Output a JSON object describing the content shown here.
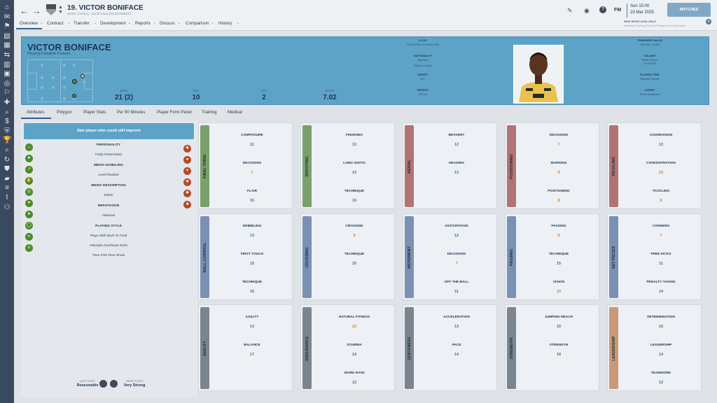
{
  "sidebar": {
    "icons": [
      "home-icon",
      "mail-icon",
      "squad-icon",
      "notebook-icon",
      "clipboard-icon",
      "transfer-icon",
      "report-icon",
      "calendar-icon",
      "globe-icon",
      "training-icon",
      "medical-icon",
      "scout-icon",
      "finance-icon",
      "club-icon",
      "trophy-icon",
      "search-icon",
      "refresh-icon",
      "shield-icon",
      "chart-icon",
      "list-icon",
      "whistle-icon",
      "staff-icon"
    ]
  },
  "header": {
    "title": "19. VICTOR BONIFACE",
    "subtitle": "Striker (Centre) - Santa Clara (€6,937/WEEK)",
    "nav": [
      "Overview",
      "Contract",
      "Transfer",
      "Development",
      "Reports",
      "Discuss",
      "Comparison",
      "History"
    ],
    "fm": "FM",
    "day": "Sun 15:00",
    "date": "23 Mar 2025",
    "matches_button": "MATCHES",
    "news_title": "NEW NEWS AVAILABLE",
    "news_text": "Additional Training To Boost Player Form Scheduled..."
  },
  "player": {
    "name": "VICTOR BONIFACE",
    "role": "Physical Complete Forward",
    "stats": [
      {
        "label": "APPS",
        "value": "21 (2)"
      },
      {
        "label": "GLS",
        "value": "10"
      },
      {
        "label": "AST",
        "value": "2"
      },
      {
        "label": "AV RAT",
        "value": "7.02"
      }
    ],
    "info_left": [
      {
        "label": "D.O.B.",
        "value": "23/12/2000 (24 years old)"
      },
      {
        "label": "NATIONALITY",
        "value": "Nigerian"
      },
      {
        "label": "HEIGHT",
        "value": "6'3\""
      },
      {
        "label": "WEIGHT",
        "value": "190 lbs"
      }
    ],
    "nationality_extra": "Nigeria (2 caps)",
    "info_right": [
      {
        "label": "TRANSFER VALUE",
        "value": "€10.0M - €12M"
      },
      {
        "label": "SALARY",
        "value": "€388,000 p/a"
      },
      {
        "label": "PLAYING TIME",
        "value": "Regular Starter"
      },
      {
        "label": "AGENT",
        "value": "None contacted"
      }
    ],
    "salary_extra": "31/12/2026"
  },
  "subtabs": [
    "Attributes",
    "Polygon",
    "Player Stats",
    "Per 90 Minutes",
    "Player Form Panel",
    "Training",
    "Medical"
  ],
  "left_panel": {
    "banner": "Star player who could still improve",
    "sections": [
      {
        "heading": "PERSONALITY",
        "values": [
          "Fairly Determined"
        ]
      },
      {
        "heading": "MEDIA HANDLING",
        "values": [
          "Level-headed"
        ]
      },
      {
        "heading": "MEDIA DESCRIPTION",
        "values": [
          "Striker"
        ]
      },
      {
        "heading": "REPUTATION",
        "values": [
          "National"
        ]
      },
      {
        "heading": "PLAYING STYLE",
        "values": [
          "Plays With Back To Goal",
          "Attempts Overhead Kicks",
          "Tries First Time Shots"
        ]
      }
    ],
    "left_foot_label": "LEFT FOOT",
    "left_foot": "Reasonable",
    "right_foot_label": "RIGHT FOOT",
    "right_foot": "Very Strong"
  },
  "colors": {
    "high": "#3c8a34",
    "mid": "#2f6fb5",
    "low": "#e07b1c"
  },
  "attribute_groups": [
    {
      "name": "FINAL THIRD",
      "color": "#7aa06c",
      "attrs": [
        [
          "COMPOSURE",
          "11"
        ],
        [
          "DECISIONS",
          "7"
        ],
        [
          "FLAIR",
          "15"
        ]
      ]
    },
    {
      "name": "SHOOTING",
      "color": "#7aa06c",
      "attrs": [
        [
          "FINISHING",
          "13"
        ],
        [
          "LONG SHOTS",
          "13"
        ],
        [
          "TECHNIQUE",
          "15"
        ]
      ]
    },
    {
      "name": "AERIAL",
      "color": "#b27373",
      "attrs": [
        [
          "BRAVERY",
          "12"
        ],
        [
          "HEADING",
          "13"
        ]
      ]
    },
    {
      "name": "POSITIONING",
      "color": "#b27373",
      "attrs": [
        [
          "DECISIONS",
          "7"
        ],
        [
          "MARKING",
          "9"
        ],
        [
          "POSITIONING",
          "8"
        ]
      ]
    },
    {
      "name": "TACKLING",
      "color": "#b27373",
      "attrs": [
        [
          "AGGRESSION",
          "13"
        ],
        [
          "CONCENTRATION",
          "10"
        ],
        [
          "TACKLING",
          "9"
        ]
      ]
    },
    {
      "name": "BALL CONTROL",
      "color": "#7a91b4",
      "attrs": [
        [
          "DRIBBLING",
          "13"
        ],
        [
          "FIRST TOUCH",
          "15"
        ],
        [
          "TECHNIQUE",
          "15"
        ]
      ]
    },
    {
      "name": "CROSSING",
      "color": "#7a91b4",
      "attrs": [
        [
          "CROSSING",
          "9"
        ],
        [
          "TECHNIQUE",
          "15"
        ]
      ]
    },
    {
      "name": "MOVEMENT",
      "color": "#7a91b4",
      "attrs": [
        [
          "ANTICIPATION",
          "12"
        ],
        [
          "DECISIONS",
          "7"
        ],
        [
          "OFF THE BALL",
          "11"
        ]
      ]
    },
    {
      "name": "PASSING",
      "color": "#7a91b4",
      "attrs": [
        [
          "PASSING",
          "9"
        ],
        [
          "TECHNIQUE",
          "15"
        ],
        [
          "VISION",
          "10"
        ]
      ]
    },
    {
      "name": "SET PIECES",
      "color": "#7a91b4",
      "attrs": [
        [
          "CORNERS",
          "7"
        ],
        [
          "FREE KICKS",
          "11"
        ],
        [
          "PENALTY TAKING",
          "14"
        ]
      ]
    },
    {
      "name": "AGILITY",
      "color": "#7b858f",
      "attrs": [
        [
          "AGILITY",
          "13"
        ],
        [
          "BALANCE",
          "17"
        ]
      ]
    },
    {
      "name": "ENDURANCE",
      "color": "#7b858f",
      "attrs": [
        [
          "NATURAL FITNESS",
          "10"
        ],
        [
          "STAMINA",
          "14"
        ],
        [
          "WORK RATE",
          "12"
        ]
      ]
    },
    {
      "name": "QUICKNESS",
      "color": "#7b858f",
      "attrs": [
        [
          "ACCELERATION",
          "13"
        ],
        [
          "PACE",
          "14"
        ]
      ]
    },
    {
      "name": "STRENGTH",
      "color": "#7b858f",
      "attrs": [
        [
          "JUMPING REACH",
          "15"
        ],
        [
          "STRENGTH",
          "18"
        ]
      ]
    },
    {
      "name": "LEADERSHIP",
      "color": "#c89a76",
      "attrs": [
        [
          "DETERMINATION",
          "16"
        ],
        [
          "LEADERSHIP",
          "14"
        ],
        [
          "TEAMWORK",
          "12"
        ]
      ]
    }
  ]
}
